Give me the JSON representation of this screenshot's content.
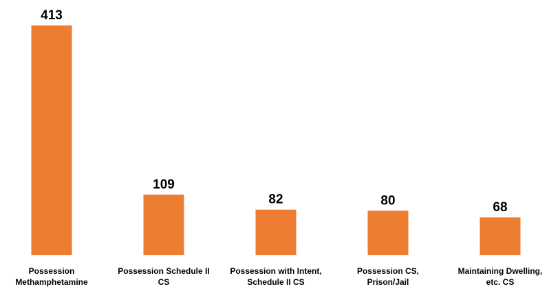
{
  "chart_data": {
    "type": "bar",
    "categories": [
      [
        "Possession",
        "Methamphetamine"
      ],
      [
        "Possession Schedule II",
        "CS"
      ],
      [
        "Possession with Intent,",
        "Schedule II CS"
      ],
      [
        "Possession CS,",
        "Prison/Jail"
      ],
      [
        "Maintaining Dwelling,",
        "etc. CS"
      ]
    ],
    "values": [
      413,
      109,
      82,
      80,
      68
    ],
    "data_labels": [
      "413",
      "109",
      "82",
      "80",
      "68"
    ],
    "bar_color": "#ED7D31",
    "ylim": [
      0,
      413
    ],
    "grid": false,
    "legend": "none"
  }
}
